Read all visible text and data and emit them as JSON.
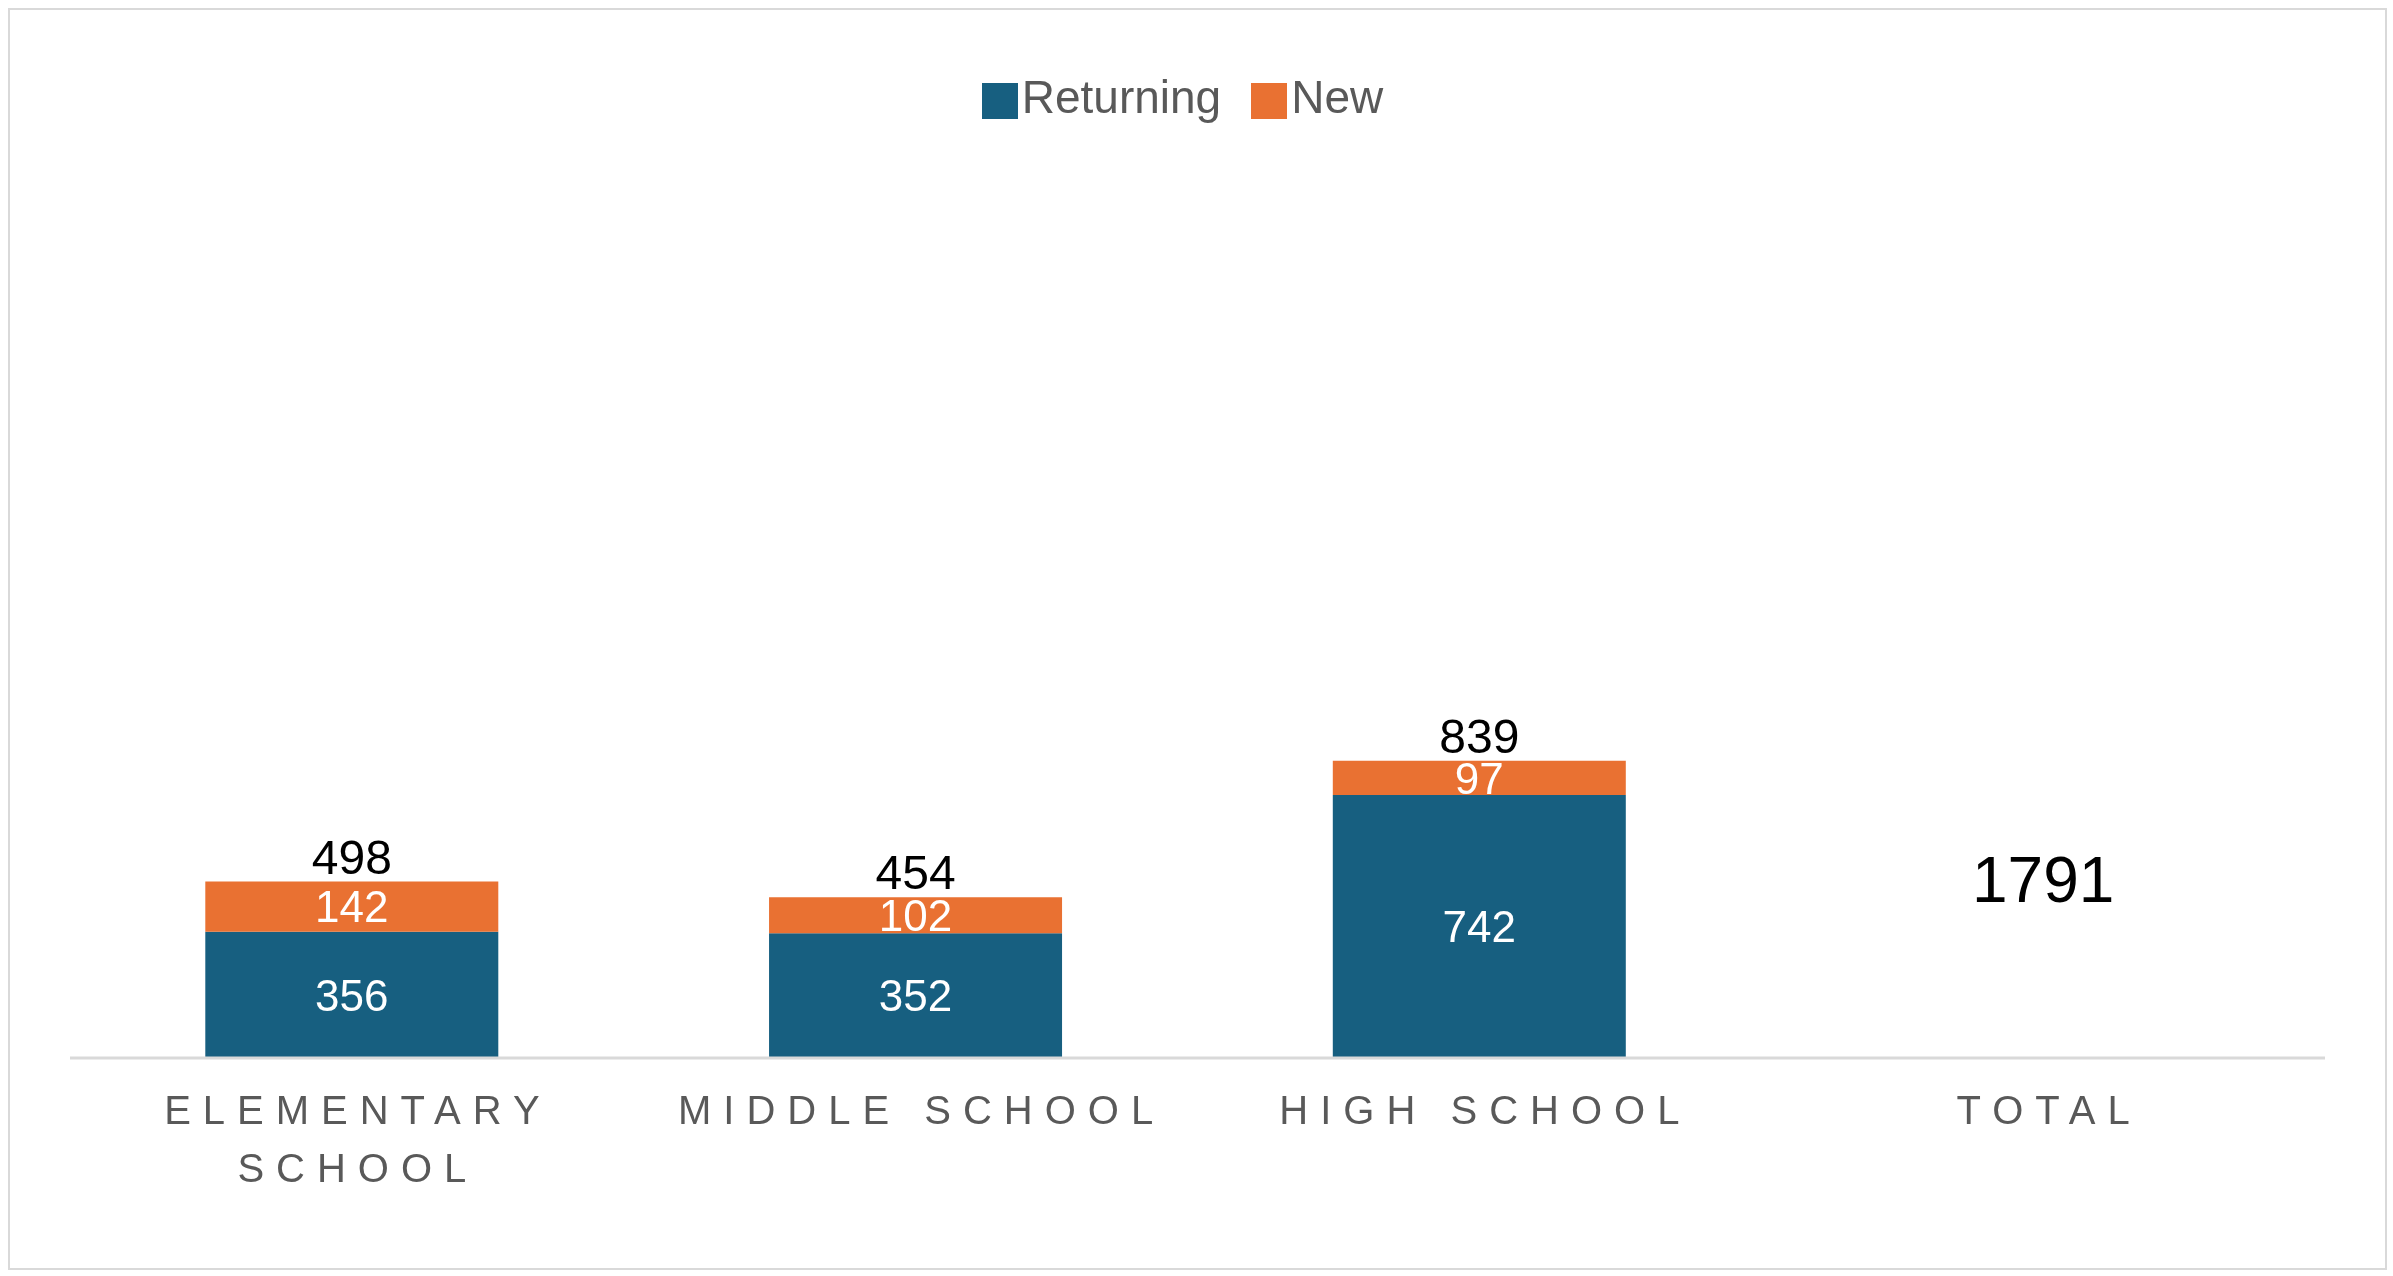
{
  "chart_data": {
    "type": "bar",
    "stacked": true,
    "categories": [
      "ELEMENTARY SCHOOL",
      "MIDDLE SCHOOL",
      "HIGH SCHOOL",
      "TOTAL"
    ],
    "series": [
      {
        "name": "Returning",
        "color": "#175f80",
        "values": [
          356,
          352,
          742,
          null
        ]
      },
      {
        "name": "New",
        "color": "#e97132",
        "values": [
          142,
          102,
          97,
          null
        ]
      }
    ],
    "data_labels": true,
    "totals": [
      "498",
      "454",
      "839",
      null
    ],
    "legend": "top",
    "grid": false,
    "annotations": [
      "1791"
    ]
  }
}
